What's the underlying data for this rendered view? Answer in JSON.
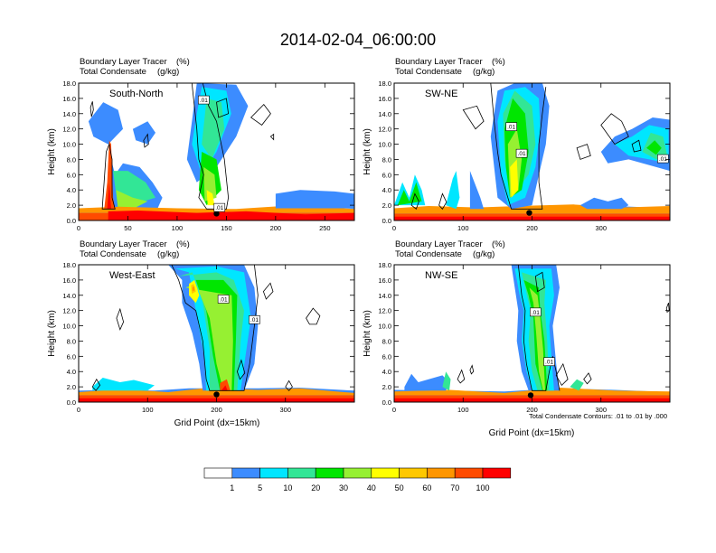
{
  "figure": {
    "title": "2014-02-04_06:00:00",
    "ylabel": "Height (km)",
    "xlabel": "Grid Point (dx=15km)",
    "contour_note": "Total Condensate Contours: .01 to .01 by .000",
    "subtitle_line1": "Boundary Layer Tracer",
    "subtitle_unit1": "(%)",
    "subtitle_line2": "Total Condensate",
    "subtitle_unit2": "(g/kg)"
  },
  "colorbar": {
    "labels": [
      "1",
      "5",
      "10",
      "20",
      "30",
      "40",
      "50",
      "60",
      "70",
      "100"
    ],
    "colors": [
      "#ffffff",
      "#3c8cff",
      "#00e6ff",
      "#32e696",
      "#00e600",
      "#96f032",
      "#ffff00",
      "#ffc800",
      "#ff9600",
      "#ff4b00",
      "#ff0000"
    ]
  },
  "chart_data": [
    {
      "type": "heatmap",
      "panel": "south-north",
      "label": "South-North",
      "xlim": [
        0,
        280
      ],
      "ylim": [
        0,
        18
      ],
      "xticks": [
        0,
        50,
        100,
        150,
        200,
        250
      ],
      "yticks": [
        "0.0",
        "2.0",
        "4.0",
        "6.0",
        "8.0",
        "10.0",
        "12.0",
        "14.0",
        "16.0",
        "18.0"
      ],
      "contour_labels": [
        {
          "text": ".01",
          "x": 127,
          "y": 15.8
        },
        {
          "text": ".01",
          "x": 143,
          "y": 1.7
        }
      ],
      "boundary_layer_height_km": 1.5,
      "features": [
        {
          "type": "plume",
          "x": [
            25,
            35
          ],
          "top_km": 10,
          "level": 5
        },
        {
          "type": "cloud",
          "x": [
            32,
            75
          ],
          "y": [
            2,
            7.5
          ],
          "level": 4
        },
        {
          "type": "anvil",
          "x": [
            115,
            165
          ],
          "y": [
            3,
            18
          ],
          "level": 4
        },
        {
          "type": "outflow",
          "x": [
            0,
            60
          ],
          "y": [
            8,
            16
          ],
          "level": 1
        }
      ],
      "markers": [
        {
          "x": 140,
          "y": 0.9
        }
      ]
    },
    {
      "type": "heatmap",
      "panel": "sw-ne",
      "label": "SW-NE",
      "xlim": [
        0,
        400
      ],
      "ylim": [
        0,
        18
      ],
      "xticks": [
        0,
        100,
        200,
        300
      ],
      "yticks": [
        "0.0",
        "2.0",
        "4.0",
        "6.0",
        "8.0",
        "10.0",
        "12.0",
        "14.0",
        "16.0",
        "18.0"
      ],
      "contour_labels": [
        {
          "text": ".01",
          "x": 170,
          "y": 12.3
        },
        {
          "text": ".01",
          "x": 185,
          "y": 8.8
        },
        {
          "text": ".01",
          "x": 390,
          "y": 8.1
        }
      ],
      "boundary_layer_height_km": 1.5,
      "features": [
        {
          "type": "core",
          "x": [
            160,
            230
          ],
          "y": [
            0,
            18
          ],
          "level": 5
        },
        {
          "type": "anvil",
          "x": [
            310,
            400
          ],
          "y": [
            7,
            13
          ],
          "level": 3
        }
      ],
      "markers": [
        {
          "x": 196,
          "y": 1.0
        }
      ]
    },
    {
      "type": "heatmap",
      "panel": "west-east",
      "label": "West-East",
      "xlim": [
        0,
        400
      ],
      "ylim": [
        0,
        18
      ],
      "xticks": [
        0,
        100,
        200,
        300
      ],
      "yticks": [
        "0.0",
        "2.0",
        "4.0",
        "6.0",
        "8.0",
        "10.0",
        "12.0",
        "14.0",
        "16.0",
        "18.0"
      ],
      "contour_labels": [
        {
          "text": ".01",
          "x": 210,
          "y": 13.5
        },
        {
          "text": ".01",
          "x": 255,
          "y": 10.8
        }
      ],
      "boundary_layer_height_km": 1.5,
      "features": [
        {
          "type": "core",
          "x": [
            175,
            245
          ],
          "y": [
            0,
            18
          ],
          "level": 5
        },
        {
          "type": "anvil",
          "x": [
            140,
            260
          ],
          "y": [
            11,
            18
          ],
          "level": 4
        }
      ],
      "markers": [
        {
          "x": 200,
          "y": 1.0
        }
      ]
    },
    {
      "type": "heatmap",
      "panel": "nw-se",
      "label": "NW-SE",
      "xlim": [
        0,
        400
      ],
      "ylim": [
        0,
        18
      ],
      "xticks": [
        0,
        100,
        200,
        300
      ],
      "yticks": [
        "0.0",
        "2.0",
        "4.0",
        "6.0",
        "8.0",
        "10.0",
        "12.0",
        "14.0",
        "16.0",
        "18.0"
      ],
      "contour_labels": [
        {
          "text": ".01",
          "x": 205,
          "y": 11.8
        },
        {
          "text": ".01",
          "x": 225,
          "y": 5.3
        }
      ],
      "boundary_layer_height_km": 1.5,
      "features": [
        {
          "type": "core",
          "x": [
            175,
            235
          ],
          "y": [
            0,
            18
          ],
          "level": 5
        },
        {
          "type": "anvil",
          "x": [
            170,
            230
          ],
          "y": [
            14,
            18
          ],
          "level": 4
        }
      ],
      "markers": [
        {
          "x": 198,
          "y": 0.9
        }
      ]
    }
  ]
}
